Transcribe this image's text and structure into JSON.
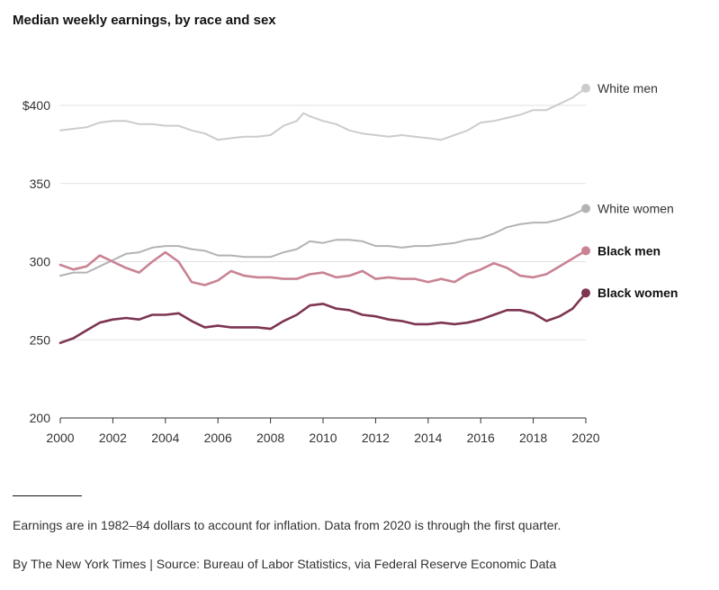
{
  "header": {
    "title": "Median weekly earnings, by race and sex"
  },
  "footer": {
    "note": "Earnings are in 1982–84 dollars to account for inflation. Data from 2020 is through the first quarter.",
    "credit": "By The New York Times | Source: Bureau of Labor Statistics, via Federal Reserve Economic Data"
  },
  "chart_data": {
    "type": "line",
    "title": "Median weekly earnings, by race and sex",
    "xlabel": "",
    "ylabel": "",
    "xlim": [
      2000,
      2020
    ],
    "ylim": [
      200,
      412
    ],
    "x_ticks": [
      2000,
      2002,
      2004,
      2006,
      2008,
      2010,
      2012,
      2014,
      2016,
      2018,
      2020
    ],
    "y_ticks": [
      {
        "value": 200,
        "label": "200"
      },
      {
        "value": 250,
        "label": "250"
      },
      {
        "value": 300,
        "label": "300"
      },
      {
        "value": 350,
        "label": "350"
      },
      {
        "value": 400,
        "label": "$400"
      }
    ],
    "grid": true,
    "series": [
      {
        "name": "White men",
        "color": "#cccccc",
        "label_style": "normal",
        "x": [
          2000,
          2000.5,
          2001,
          2001.5,
          2002,
          2002.5,
          2003,
          2003.5,
          2004,
          2004.5,
          2005,
          2005.5,
          2006,
          2006.5,
          2007,
          2007.5,
          2008,
          2008.5,
          2009,
          2009.25,
          2009.5,
          2010,
          2010.5,
          2011,
          2011.5,
          2012,
          2012.5,
          2013,
          2013.5,
          2014,
          2014.5,
          2015,
          2015.5,
          2016,
          2016.5,
          2017,
          2017.5,
          2018,
          2018.5,
          2019,
          2019.5,
          2020
        ],
        "values": [
          384,
          385,
          386,
          389,
          390,
          390,
          388,
          388,
          387,
          387,
          384,
          382,
          378,
          379,
          380,
          380,
          381,
          387,
          390,
          395,
          393,
          390,
          388,
          384,
          382,
          381,
          380,
          381,
          380,
          379,
          378,
          381,
          384,
          389,
          390,
          392,
          394,
          397,
          397,
          401,
          405,
          411
        ]
      },
      {
        "name": "White women",
        "color": "#b3b3b3",
        "label_style": "normal",
        "x": [
          2000,
          2000.5,
          2001,
          2001.5,
          2002,
          2002.5,
          2003,
          2003.5,
          2004,
          2004.5,
          2005,
          2005.5,
          2006,
          2006.5,
          2007,
          2007.5,
          2008,
          2008.5,
          2009,
          2009.5,
          2010,
          2010.5,
          2011,
          2011.5,
          2012,
          2012.5,
          2013,
          2013.5,
          2014,
          2014.5,
          2015,
          2015.5,
          2016,
          2016.5,
          2017,
          2017.5,
          2018,
          2018.5,
          2019,
          2019.5,
          2020
        ],
        "values": [
          291,
          293,
          293,
          297,
          301,
          305,
          306,
          309,
          310,
          310,
          308,
          307,
          304,
          304,
          303,
          303,
          303,
          306,
          308,
          313,
          312,
          314,
          314,
          313,
          310,
          310,
          309,
          310,
          310,
          311,
          312,
          314,
          315,
          318,
          322,
          324,
          325,
          325,
          327,
          330,
          334
        ]
      },
      {
        "name": "Black men",
        "color": "#c98393",
        "label_style": "bold",
        "x": [
          2000,
          2000.5,
          2001,
          2001.5,
          2002,
          2002.5,
          2003,
          2003.5,
          2004,
          2004.5,
          2005,
          2005.5,
          2006,
          2006.5,
          2007,
          2007.5,
          2008,
          2008.5,
          2009,
          2009.5,
          2010,
          2010.5,
          2011,
          2011.5,
          2012,
          2012.5,
          2013,
          2013.5,
          2014,
          2014.5,
          2015,
          2015.5,
          2016,
          2016.5,
          2017,
          2017.5,
          2018,
          2018.5,
          2019,
          2019.5,
          2020
        ],
        "values": [
          298,
          295,
          297,
          304,
          300,
          296,
          293,
          300,
          306,
          300,
          287,
          285,
          288,
          294,
          291,
          290,
          290,
          289,
          289,
          292,
          293,
          290,
          291,
          294,
          289,
          290,
          289,
          289,
          287,
          289,
          287,
          292,
          295,
          299,
          296,
          291,
          290,
          292,
          297,
          302,
          307
        ]
      },
      {
        "name": "Black women",
        "color": "#7d3552",
        "label_style": "bold",
        "x": [
          2000,
          2000.5,
          2001,
          2001.5,
          2002,
          2002.5,
          2003,
          2003.5,
          2004,
          2004.5,
          2005,
          2005.5,
          2006,
          2006.5,
          2007,
          2007.5,
          2008,
          2008.5,
          2009,
          2009.5,
          2010,
          2010.5,
          2011,
          2011.5,
          2012,
          2012.5,
          2013,
          2013.5,
          2014,
          2014.5,
          2015,
          2015.5,
          2016,
          2016.5,
          2017,
          2017.5,
          2018,
          2018.5,
          2019,
          2019.5,
          2020
        ],
        "values": [
          248,
          251,
          256,
          261,
          263,
          264,
          263,
          266,
          266,
          267,
          262,
          258,
          259,
          258,
          258,
          258,
          257,
          262,
          266,
          272,
          273,
          270,
          269,
          266,
          265,
          263,
          262,
          260,
          260,
          261,
          260,
          261,
          263,
          266,
          269,
          269,
          267,
          262,
          265,
          270,
          280
        ]
      }
    ]
  }
}
